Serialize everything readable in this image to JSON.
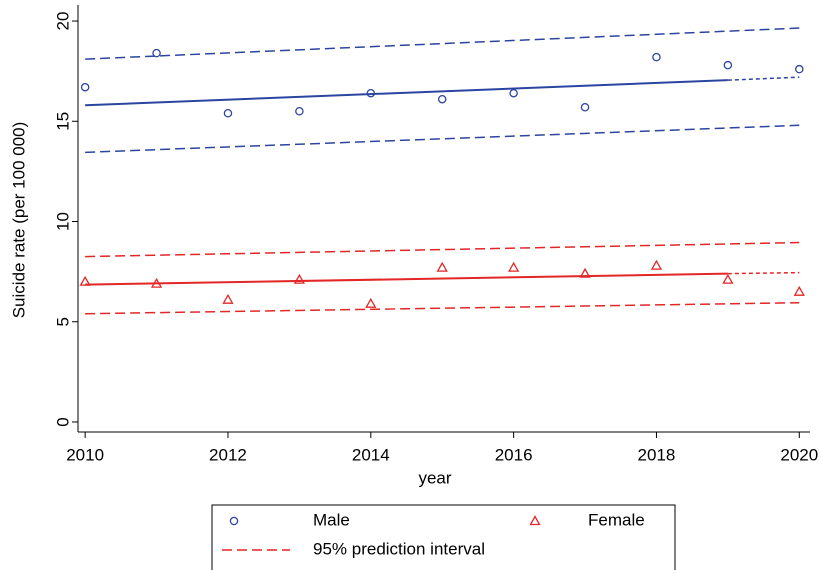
{
  "chart_data": {
    "type": "scatter",
    "x_label": "year",
    "y_label": "Suicide rate (per 100 000)",
    "x": [
      2010,
      2011,
      2012,
      2013,
      2014,
      2015,
      2016,
      2017,
      2018,
      2019,
      2020
    ],
    "xlim": [
      2009.9,
      2020.15
    ],
    "ylim": [
      -0.5,
      20.8
    ],
    "xticks": [
      2010,
      2012,
      2014,
      2016,
      2018,
      2020
    ],
    "yticks": [
      0,
      5,
      10,
      15,
      20
    ],
    "series": [
      {
        "name": "Male",
        "marker": "circle",
        "color": "#2b45a0",
        "values": [
          16.7,
          18.4,
          15.4,
          15.5,
          16.4,
          16.1,
          16.4,
          15.7,
          18.2,
          17.8,
          17.6
        ]
      },
      {
        "name": "Female",
        "marker": "triangle",
        "color": "#e32626",
        "values": [
          7.0,
          6.9,
          6.1,
          7.1,
          5.9,
          7.7,
          7.7,
          7.4,
          7.8,
          7.1,
          6.5
        ]
      },
      {
        "name": "95% prediction interval",
        "line": "dashed",
        "color": "#e32626",
        "x": [
          2010,
          2020
        ],
        "values": [
          8.25,
          8.95
        ]
      },
      {
        "line": "dashed",
        "color": "#e32626",
        "x": [
          2010,
          2020
        ],
        "values": [
          5.4,
          5.95
        ]
      },
      {
        "line": "solid",
        "color": "#e32626",
        "x": [
          2010,
          2019
        ],
        "values": [
          6.85,
          7.4
        ]
      },
      {
        "line": "dotted",
        "color": "#e32626",
        "x": [
          2019,
          2020
        ],
        "values": [
          7.4,
          7.45
        ]
      },
      {
        "line": "dashed",
        "color": "#2b45a0",
        "x": [
          2010,
          2020
        ],
        "values": [
          18.1,
          19.65
        ]
      },
      {
        "line": "dashed",
        "color": "#2b45a0",
        "x": [
          2010,
          2020
        ],
        "values": [
          13.45,
          14.8
        ]
      },
      {
        "line": "solid",
        "color": "#2b45a0",
        "x": [
          2010,
          2019
        ],
        "values": [
          15.8,
          17.05
        ]
      },
      {
        "line": "dotted",
        "color": "#2b45a0",
        "x": [
          2019,
          2020
        ],
        "values": [
          17.05,
          17.2
        ]
      }
    ]
  }
}
